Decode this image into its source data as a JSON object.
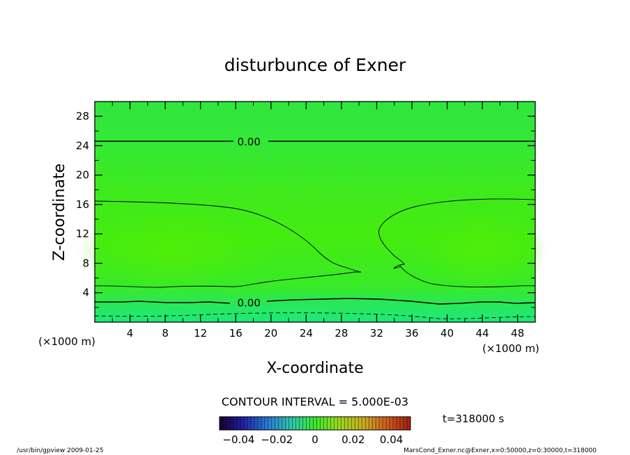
{
  "chart_data": {
    "type": "heatmap",
    "title": "disturbunce of Exner",
    "xlabel": "X-coordinate",
    "ylabel": "Z-coordinate",
    "xunit": "(×1000 m)",
    "yunit": "(×1000 m)",
    "xlim": [
      0,
      50
    ],
    "ylim": [
      0,
      30
    ],
    "xticks": [
      4,
      8,
      12,
      16,
      20,
      24,
      28,
      32,
      36,
      40,
      44,
      48
    ],
    "yticks": [
      4,
      8,
      12,
      16,
      20,
      24,
      28
    ],
    "contour_interval_label": "CONTOUR INTERVAL = 5.000E-03",
    "contour_labels": [
      {
        "text": "0.00",
        "x": 17.5,
        "y": 24.5
      },
      {
        "text": "0.00",
        "x": 17.5,
        "y": 2.6
      }
    ],
    "colorbar": {
      "ticks": [
        "−0.04",
        "−0.02",
        "0",
        "0.02",
        "0.04"
      ],
      "range": [
        -0.05,
        0.05
      ]
    },
    "colors": {
      "field_top": "#2ee84a",
      "field_mid": "#40ec10",
      "field_bottom": "#1ee86a"
    },
    "time_label": "t=318000 s",
    "footer_left": "/usr/bin/gpview  2009-01-25",
    "footer_right": "MarsCond_Exner.nc@Exner,x=0:50000,z=0:30000,t=318000"
  }
}
